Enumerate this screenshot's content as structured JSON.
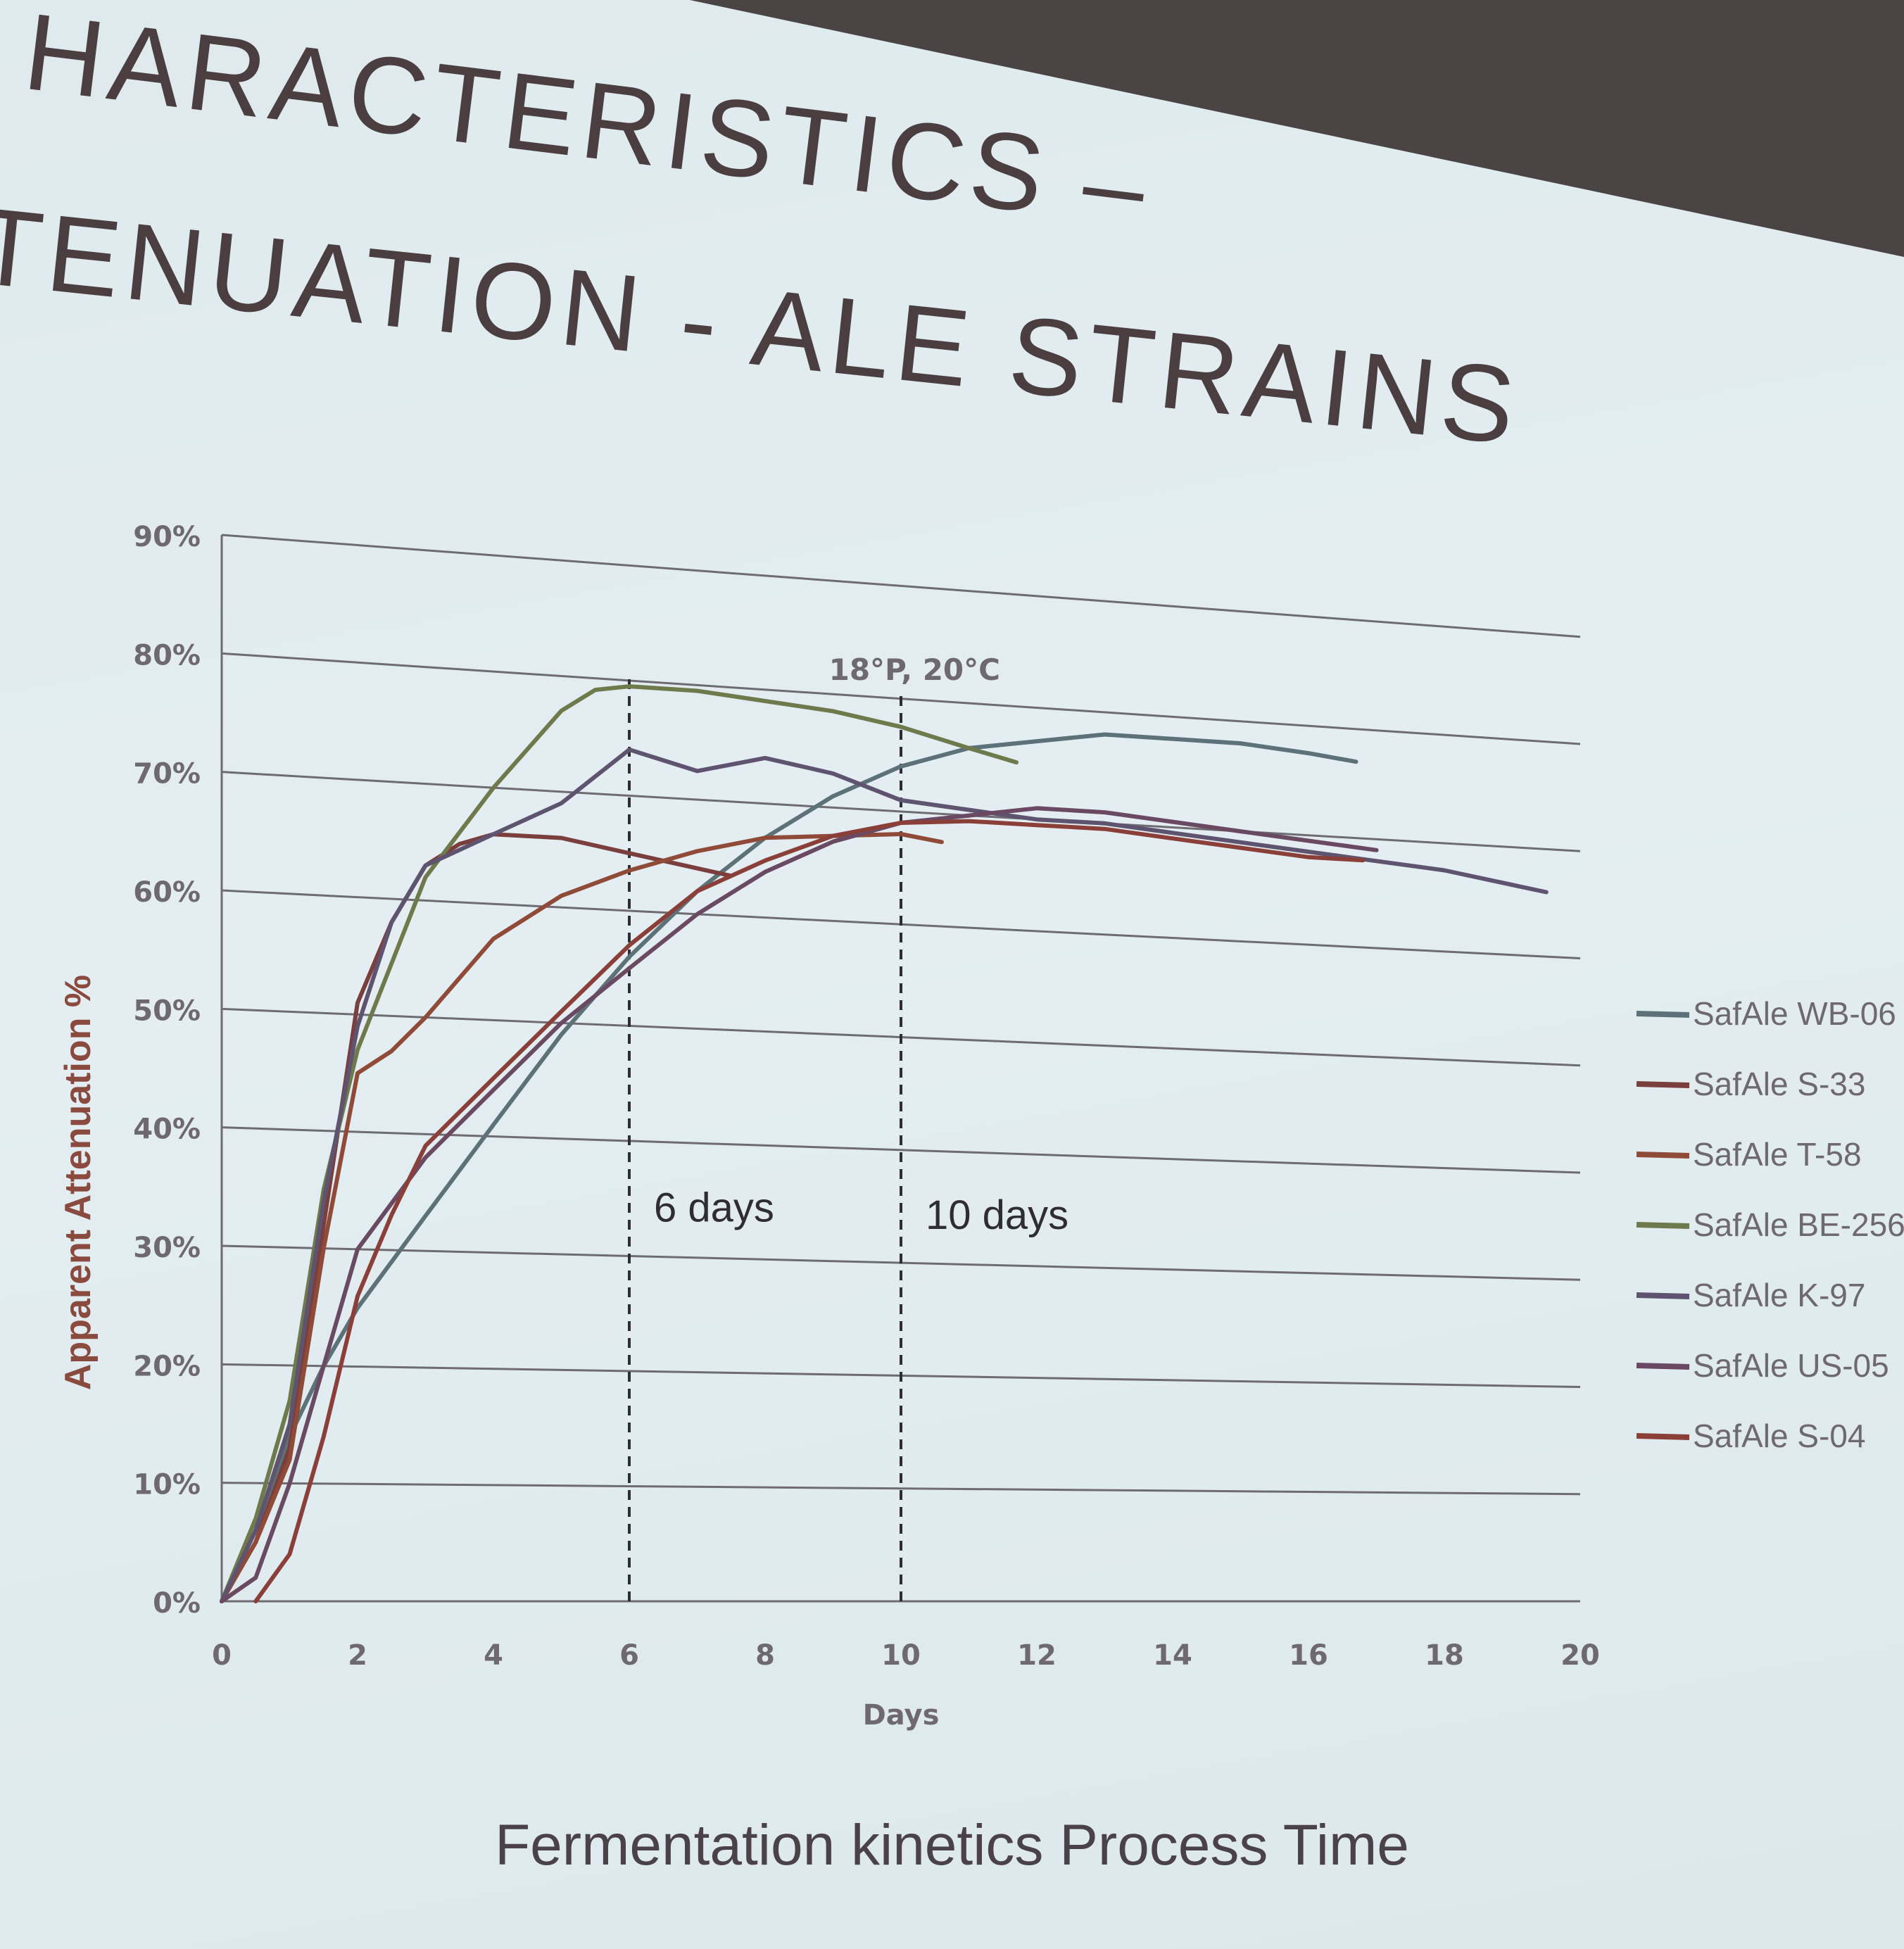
{
  "slide": {
    "title_line1": "HARACTERISTICS –",
    "title_line2": "TENUATION -  ALE STRAINS",
    "caption": "Fermentation kinetics Process Time"
  },
  "colors": {
    "background": "#e0ebef",
    "title": "#4a3e40",
    "grid": "#6f6b72",
    "axis_label": "#8b4a3e"
  },
  "chart_data": {
    "type": "line",
    "annotation": "18°P, 20°C",
    "xlabel": "Days",
    "ylabel": "Apparent Attenuation %",
    "xlim": [
      0,
      20
    ],
    "ylim": [
      0,
      90
    ],
    "x_ticks": [
      "0",
      "2",
      "4",
      "6",
      "8",
      "10",
      "12",
      "14",
      "16",
      "18",
      "20"
    ],
    "y_ticks": [
      "0%",
      "10%",
      "20%",
      "30%",
      "40%",
      "50%",
      "60%",
      "70%",
      "80%",
      "90%"
    ],
    "grid": true,
    "legend_position": "right",
    "reference_lines": [
      {
        "x": 6,
        "label": "6 days"
      },
      {
        "x": 10,
        "label": "10 days"
      }
    ],
    "series": [
      {
        "name": "SafAle WB-06",
        "color": "#5d7278",
        "points": [
          [
            0,
            0
          ],
          [
            0.5,
            6
          ],
          [
            1,
            14
          ],
          [
            1.5,
            20
          ],
          [
            2,
            25
          ],
          [
            3,
            33
          ],
          [
            4,
            41
          ],
          [
            5,
            49
          ],
          [
            6,
            56
          ],
          [
            7,
            62
          ],
          [
            8,
            67
          ],
          [
            9,
            71
          ],
          [
            10,
            74
          ],
          [
            11,
            76
          ],
          [
            12,
            77
          ],
          [
            13,
            78
          ],
          [
            14,
            78
          ],
          [
            15,
            78
          ],
          [
            16,
            77.5
          ],
          [
            16.7,
            77
          ]
        ]
      },
      {
        "name": "SafAle S-33",
        "color": "#7a3e3c",
        "points": [
          [
            0,
            0
          ],
          [
            0.5,
            5
          ],
          [
            1,
            13
          ],
          [
            1.5,
            32
          ],
          [
            2,
            51
          ],
          [
            2.5,
            58
          ],
          [
            3,
            63
          ],
          [
            3.5,
            65
          ],
          [
            4,
            66
          ],
          [
            5,
            66
          ],
          [
            6,
            65
          ],
          [
            7,
            64
          ],
          [
            7.5,
            63.5
          ]
        ]
      },
      {
        "name": "SafAle T-58",
        "color": "#8f4a38",
        "points": [
          [
            0,
            0
          ],
          [
            0.5,
            5
          ],
          [
            1,
            12
          ],
          [
            1.5,
            30
          ],
          [
            2,
            45
          ],
          [
            2.5,
            47
          ],
          [
            3,
            50
          ],
          [
            4,
            57
          ],
          [
            5,
            61
          ],
          [
            6,
            63.5
          ],
          [
            7,
            65.5
          ],
          [
            8,
            67
          ],
          [
            9,
            67.5
          ],
          [
            10,
            68
          ],
          [
            10.6,
            67.5
          ]
        ]
      },
      {
        "name": "SafAle BE-256",
        "color": "#6e7a4c",
        "points": [
          [
            0,
            0
          ],
          [
            0.5,
            7
          ],
          [
            1,
            17
          ],
          [
            1.5,
            35
          ],
          [
            2,
            47
          ],
          [
            3,
            62
          ],
          [
            4,
            70
          ],
          [
            5,
            77
          ],
          [
            5.5,
            79
          ],
          [
            6,
            79.5
          ],
          [
            7,
            79.5
          ],
          [
            8,
            79
          ],
          [
            9,
            78.5
          ],
          [
            10,
            77.5
          ],
          [
            11,
            76
          ],
          [
            11.7,
            75
          ]
        ]
      },
      {
        "name": "SafAle K-97",
        "color": "#5e5470",
        "points": [
          [
            0,
            0
          ],
          [
            0.5,
            6
          ],
          [
            1,
            15
          ],
          [
            1.5,
            34
          ],
          [
            2,
            49
          ],
          [
            2.5,
            58
          ],
          [
            3,
            63
          ],
          [
            4,
            66
          ],
          [
            5,
            69
          ],
          [
            6,
            74
          ],
          [
            7,
            72.5
          ],
          [
            8,
            74
          ],
          [
            9,
            73
          ],
          [
            10,
            71
          ],
          [
            11,
            70.5
          ],
          [
            12,
            70
          ],
          [
            13,
            70
          ],
          [
            14,
            69.5
          ],
          [
            15,
            69
          ],
          [
            16,
            68.5
          ],
          [
            17,
            68
          ],
          [
            18,
            67.5
          ],
          [
            19.5,
            66
          ]
        ]
      },
      {
        "name": "SafAle US-05",
        "color": "#6a4a62",
        "points": [
          [
            0,
            0
          ],
          [
            0.5,
            2
          ],
          [
            1,
            10
          ],
          [
            1.5,
            20
          ],
          [
            2,
            30
          ],
          [
            3,
            38
          ],
          [
            4,
            44
          ],
          [
            5,
            50
          ],
          [
            6,
            55
          ],
          [
            7,
            60
          ],
          [
            8,
            64
          ],
          [
            9,
            67
          ],
          [
            10,
            69
          ],
          [
            11,
            70
          ],
          [
            12,
            71
          ],
          [
            13,
            71
          ],
          [
            14,
            70.5
          ],
          [
            15,
            70
          ],
          [
            16,
            69.5
          ],
          [
            17,
            69
          ]
        ]
      },
      {
        "name": "SafAle S-04",
        "color": "#8a4038",
        "points": [
          [
            0.5,
            0
          ],
          [
            1,
            4
          ],
          [
            1.5,
            14
          ],
          [
            2,
            26
          ],
          [
            2.5,
            33
          ],
          [
            3,
            39
          ],
          [
            4,
            45
          ],
          [
            5,
            51
          ],
          [
            6,
            57
          ],
          [
            7,
            62
          ],
          [
            8,
            65
          ],
          [
            9,
            67.5
          ],
          [
            10,
            69
          ],
          [
            11,
            69.5
          ],
          [
            12,
            69.5
          ],
          [
            13,
            69.5
          ],
          [
            14,
            69
          ],
          [
            15,
            68.5
          ],
          [
            16,
            68
          ],
          [
            16.8,
            68
          ]
        ]
      }
    ]
  }
}
